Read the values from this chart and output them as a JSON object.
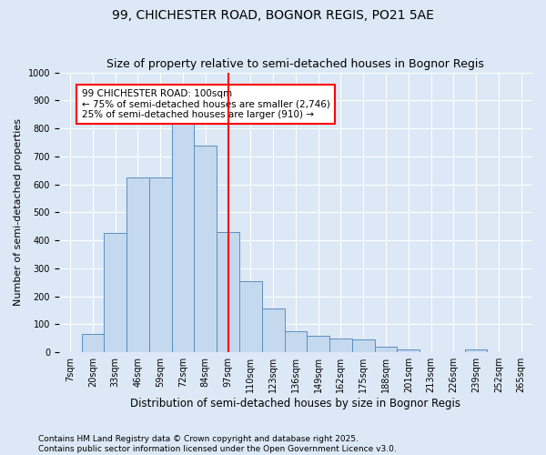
{
  "title": "99, CHICHESTER ROAD, BOGNOR REGIS, PO21 5AE",
  "subtitle": "Size of property relative to semi-detached houses in Bognor Regis",
  "xlabel": "Distribution of semi-detached houses by size in Bognor Regis",
  "ylabel": "Number of semi-detached properties",
  "categories": [
    "7sqm",
    "20sqm",
    "33sqm",
    "46sqm",
    "59sqm",
    "72sqm",
    "84sqm",
    "97sqm",
    "110sqm",
    "123sqm",
    "136sqm",
    "149sqm",
    "162sqm",
    "175sqm",
    "188sqm",
    "201sqm",
    "213sqm",
    "226sqm",
    "239sqm",
    "252sqm",
    "265sqm"
  ],
  "values": [
    0,
    65,
    425,
    625,
    625,
    825,
    740,
    430,
    255,
    155,
    75,
    60,
    50,
    45,
    20,
    10,
    0,
    0,
    10,
    0,
    0
  ],
  "bar_color": "#c5d9ee",
  "bar_edge_color": "#5a8fc0",
  "vline_x_idx": 7,
  "vline_color": "red",
  "annotation_text": "99 CHICHESTER ROAD: 100sqm\n← 75% of semi-detached houses are smaller (2,746)\n25% of semi-detached houses are larger (910) →",
  "annotation_box_color": "white",
  "annotation_edge_color": "red",
  "ylim": [
    0,
    1000
  ],
  "yticks": [
    0,
    100,
    200,
    300,
    400,
    500,
    600,
    700,
    800,
    900,
    1000
  ],
  "background_color": "#dce8f5",
  "plot_background": "#dce8f5",
  "footer_text": "Contains HM Land Registry data © Crown copyright and database right 2025.\nContains public sector information licensed under the Open Government Licence v3.0.",
  "title_fontsize": 10,
  "xlabel_fontsize": 8.5,
  "ylabel_fontsize": 8,
  "tick_fontsize": 7,
  "footer_fontsize": 6.5,
  "annot_fontsize": 7.5
}
